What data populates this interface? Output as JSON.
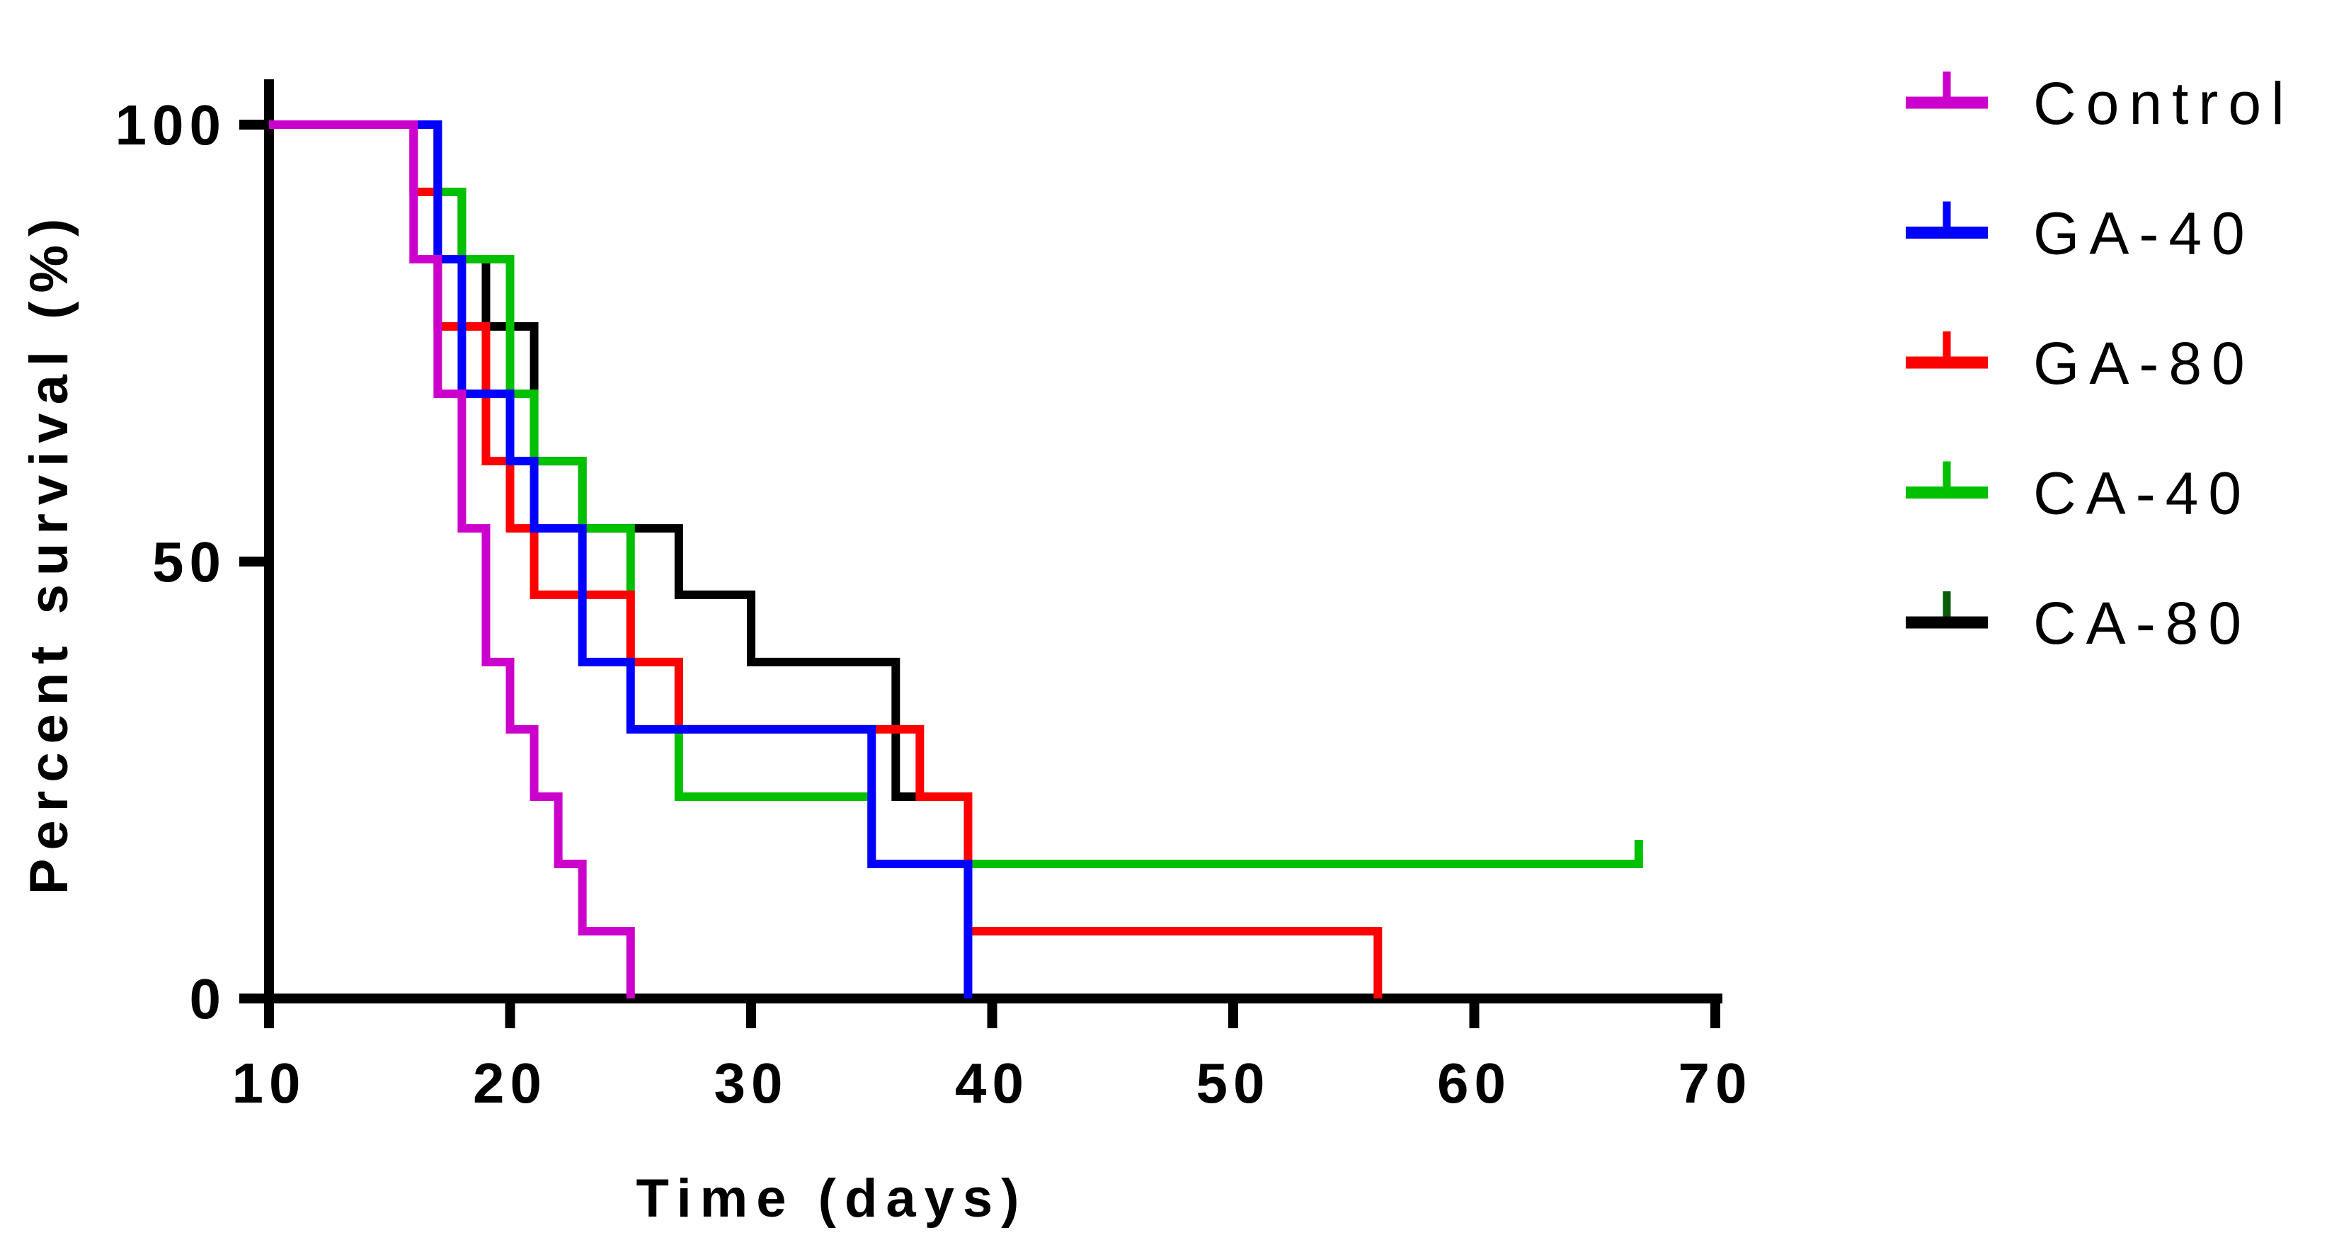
{
  "figure": {
    "background_color": "#ffffff",
    "axis_color": "#000000"
  },
  "chart_data": {
    "type": "line",
    "subtype": "kaplan-meier-step",
    "title": "",
    "xlabel": "Time (days)",
    "ylabel": "Percent survival (%)",
    "xlim": [
      10,
      70
    ],
    "ylim": [
      0,
      100
    ],
    "x_ticks": [
      10,
      20,
      30,
      40,
      50,
      60,
      70
    ],
    "y_ticks": [
      100,
      50,
      0
    ],
    "grid": false,
    "legend_position": "right",
    "group_size": 13,
    "series": [
      {
        "name": "Control",
        "color": "#CC00CC",
        "legend_tick_color": "#CC00CC",
        "points": [
          [
            10,
            100
          ],
          [
            16,
            100
          ],
          [
            16,
            84.6
          ],
          [
            17,
            84.6
          ],
          [
            17,
            69.2
          ],
          [
            18,
            69.2
          ],
          [
            18,
            53.8
          ],
          [
            19,
            53.8
          ],
          [
            19,
            38.5
          ],
          [
            20,
            38.5
          ],
          [
            20,
            30.8
          ],
          [
            21,
            30.8
          ],
          [
            21,
            23.1
          ],
          [
            22,
            23.1
          ],
          [
            22,
            15.4
          ],
          [
            23,
            15.4
          ],
          [
            23,
            7.7
          ],
          [
            25,
            7.7
          ],
          [
            25,
            0
          ]
        ],
        "end_day": 25,
        "end_survival": 0,
        "censored": []
      },
      {
        "name": "GA-40",
        "color": "#0000FF",
        "legend_tick_color": "#0000FF",
        "points": [
          [
            10,
            100
          ],
          [
            17,
            100
          ],
          [
            17,
            84.6
          ],
          [
            18,
            84.6
          ],
          [
            18,
            69.2
          ],
          [
            20,
            69.2
          ],
          [
            20,
            61.5
          ],
          [
            21,
            61.5
          ],
          [
            21,
            53.8
          ],
          [
            23,
            53.8
          ],
          [
            23,
            38.5
          ],
          [
            25,
            38.5
          ],
          [
            25,
            30.8
          ],
          [
            35,
            30.8
          ],
          [
            35,
            15.4
          ],
          [
            39,
            15.4
          ],
          [
            39,
            0
          ]
        ],
        "end_day": 39,
        "end_survival": 0,
        "censored": []
      },
      {
        "name": "GA-80",
        "color": "#FF0000",
        "legend_tick_color": "#FF0000",
        "points": [
          [
            10,
            100
          ],
          [
            16,
            100
          ],
          [
            16,
            92.3
          ],
          [
            17,
            92.3
          ],
          [
            17,
            76.9
          ],
          [
            19,
            76.9
          ],
          [
            19,
            61.5
          ],
          [
            20,
            61.5
          ],
          [
            20,
            53.8
          ],
          [
            21,
            53.8
          ],
          [
            21,
            46.2
          ],
          [
            25,
            46.2
          ],
          [
            25,
            38.5
          ],
          [
            27,
            38.5
          ],
          [
            27,
            30.8
          ],
          [
            37,
            30.8
          ],
          [
            37,
            23.1
          ],
          [
            39,
            23.1
          ],
          [
            39,
            7.7
          ],
          [
            56,
            7.7
          ],
          [
            56,
            0
          ]
        ],
        "end_day": 56,
        "end_survival": 0,
        "censored": []
      },
      {
        "name": "CA-40",
        "color": "#00C000",
        "legend_tick_color": "#00C000",
        "points": [
          [
            10,
            100
          ],
          [
            17,
            100
          ],
          [
            17,
            92.3
          ],
          [
            18,
            92.3
          ],
          [
            18,
            84.6
          ],
          [
            20,
            84.6
          ],
          [
            20,
            69.2
          ],
          [
            21,
            69.2
          ],
          [
            21,
            61.5
          ],
          [
            23,
            61.5
          ],
          [
            23,
            53.8
          ],
          [
            25,
            53.8
          ],
          [
            25,
            38.5
          ],
          [
            27,
            38.5
          ],
          [
            27,
            23.1
          ],
          [
            35,
            23.1
          ],
          [
            35,
            15.4
          ],
          [
            67,
            15.4
          ]
        ],
        "end_day": 67,
        "end_survival": 15.4,
        "censored": [
          [
            67,
            15.4
          ]
        ]
      },
      {
        "name": "CA-80",
        "color": "#000000",
        "legend_tick_color": "#0A5C0A",
        "points": [
          [
            10,
            100
          ],
          [
            17,
            100
          ],
          [
            17,
            92.3
          ],
          [
            18,
            92.3
          ],
          [
            18,
            84.6
          ],
          [
            19,
            84.6
          ],
          [
            19,
            76.9
          ],
          [
            21,
            76.9
          ],
          [
            21,
            61.5
          ],
          [
            23,
            61.5
          ],
          [
            23,
            53.8
          ],
          [
            27,
            53.8
          ],
          [
            27,
            46.2
          ],
          [
            30,
            46.2
          ],
          [
            30,
            38.5
          ],
          [
            36,
            38.5
          ],
          [
            36,
            23.1
          ],
          [
            37,
            23.1
          ]
        ],
        "end_day": 37,
        "end_survival": 23.1,
        "censored": []
      }
    ],
    "draw_order": [
      "CA-80",
      "CA-40",
      "GA-80",
      "GA-40",
      "Control"
    ],
    "legend_order": [
      "Control",
      "GA-40",
      "GA-80",
      "CA-40",
      "CA-80"
    ]
  }
}
